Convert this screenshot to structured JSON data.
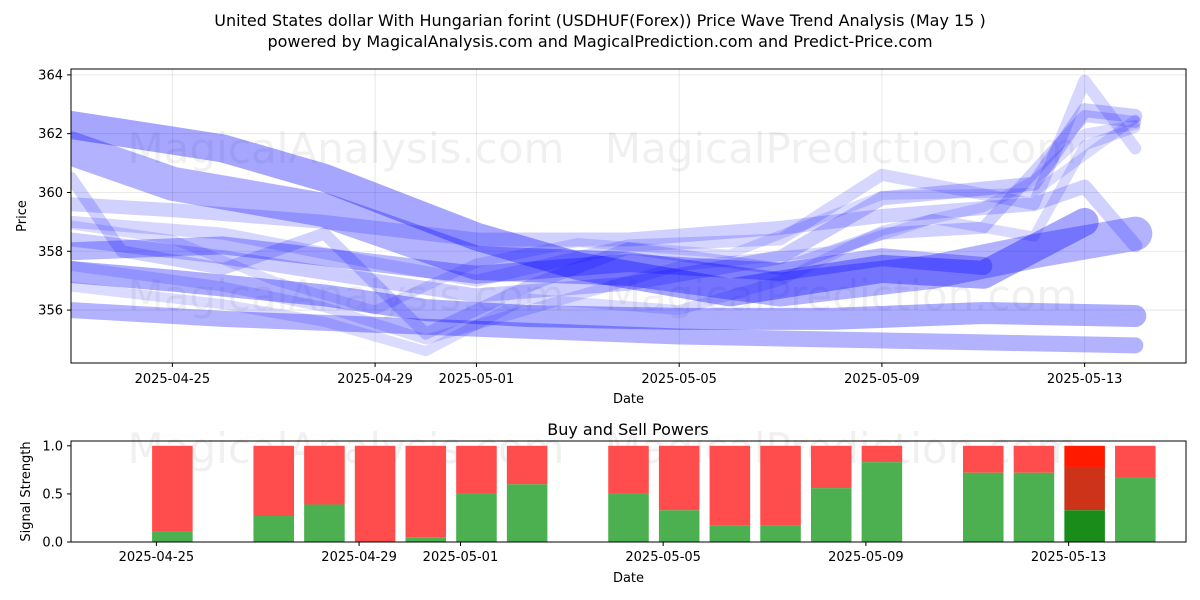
{
  "title_line1": "United States dollar With Hungarian forint (USDHUF(Forex)) Price Wave Trend Analysis (May 15 )",
  "title_line2": "powered by MagicalAnalysis.com and MagicalPrediction.com and Predict-Price.com",
  "watermarks": [
    "MagicalAnalysis.com",
    "MagicalPrediction.com"
  ],
  "chart_data": [
    {
      "type": "line",
      "title": "",
      "xlabel": "Date",
      "ylabel": "Price",
      "xlim": [
        "2025-04-23",
        "2025-05-15"
      ],
      "ylim": [
        354.2,
        364.2
      ],
      "x_ticks": [
        "2025-04-25",
        "2025-04-29",
        "2025-05-01",
        "2025-05-05",
        "2025-05-09",
        "2025-05-13"
      ],
      "y_ticks": [
        356,
        358,
        360,
        362,
        364
      ],
      "grid": true,
      "band_color": "#0000ff",
      "series": [
        {
          "points": [
            [
              "2025-04-23",
              361.5
            ],
            [
              "2025-04-25",
              360.3
            ],
            [
              "2025-04-28",
              359.4
            ],
            [
              "2025-05-01",
              357.6
            ],
            [
              "2025-05-04",
              357.4
            ],
            [
              "2025-05-07",
              356.7
            ],
            [
              "2025-05-10",
              357.3
            ],
            [
              "2025-05-12",
              358.0
            ],
            [
              "2025-05-14",
              358.6
            ]
          ]
        },
        {
          "points": [
            [
              "2025-04-23",
              362.3
            ],
            [
              "2025-04-26",
              361.5
            ],
            [
              "2025-04-28",
              360.5
            ],
            [
              "2025-05-01",
              358.5
            ],
            [
              "2025-05-03",
              357.5
            ],
            [
              "2025-05-06",
              356.6
            ],
            [
              "2025-05-09",
              357.4
            ],
            [
              "2025-05-11",
              357.2
            ],
            [
              "2025-05-13",
              359.0
            ]
          ]
        },
        {
          "points": [
            [
              "2025-04-23",
              357.3
            ],
            [
              "2025-04-25",
              357.0
            ],
            [
              "2025-04-28",
              356.5
            ],
            [
              "2025-04-30",
              356.0
            ],
            [
              "2025-05-02",
              355.8
            ],
            [
              "2025-05-05",
              355.7
            ],
            [
              "2025-05-08",
              355.7
            ],
            [
              "2025-05-11",
              355.9
            ],
            [
              "2025-05-14",
              355.8
            ]
          ]
        },
        {
          "points": [
            [
              "2025-04-23",
              356.0
            ],
            [
              "2025-04-26",
              355.7
            ],
            [
              "2025-04-29",
              355.5
            ],
            [
              "2025-05-02",
              355.3
            ],
            [
              "2025-05-05",
              355.1
            ],
            [
              "2025-05-08",
              355.0
            ],
            [
              "2025-05-11",
              354.9
            ],
            [
              "2025-05-14",
              354.8
            ]
          ]
        },
        {
          "points": [
            [
              "2025-04-23",
              358.0
            ],
            [
              "2025-04-26",
              358.2
            ],
            [
              "2025-04-28",
              357.8
            ],
            [
              "2025-05-01",
              357.2
            ],
            [
              "2025-05-04",
              357.6
            ],
            [
              "2025-05-07",
              357.3
            ],
            [
              "2025-05-09",
              357.8
            ],
            [
              "2025-05-11",
              357.5
            ]
          ]
        },
        {
          "points": [
            [
              "2025-04-23",
              360.5
            ],
            [
              "2025-04-24",
              358.0
            ],
            [
              "2025-04-26",
              357.4
            ],
            [
              "2025-04-28",
              358.6
            ],
            [
              "2025-04-30",
              355.2
            ],
            [
              "2025-05-02",
              356.8
            ],
            [
              "2025-05-04",
              358.1
            ],
            [
              "2025-05-07",
              357.4
            ],
            [
              "2025-05-09",
              358.6
            ],
            [
              "2025-05-11",
              358.8
            ],
            [
              "2025-05-13",
              362.6
            ],
            [
              "2025-05-14",
              362.4
            ]
          ]
        },
        {
          "points": [
            [
              "2025-04-23",
              358.4
            ],
            [
              "2025-04-26",
              357.8
            ],
            [
              "2025-04-29",
              357.0
            ],
            [
              "2025-05-01",
              356.5
            ],
            [
              "2025-05-04",
              356.9
            ],
            [
              "2025-05-07",
              357.8
            ],
            [
              "2025-05-09",
              359.8
            ],
            [
              "2025-05-12",
              360.3
            ],
            [
              "2025-05-13",
              362.8
            ],
            [
              "2025-05-14",
              362.6
            ]
          ]
        },
        {
          "points": [
            [
              "2025-04-23",
              359.0
            ],
            [
              "2025-04-26",
              358.6
            ],
            [
              "2025-04-29",
              357.6
            ],
            [
              "2025-05-01",
              357.0
            ],
            [
              "2025-05-04",
              358.2
            ],
            [
              "2025-05-07",
              358.4
            ],
            [
              "2025-05-09",
              360.6
            ],
            [
              "2025-05-12",
              359.6
            ],
            [
              "2025-05-13",
              363.8
            ],
            [
              "2025-05-14",
              361.5
            ]
          ]
        },
        {
          "points": [
            [
              "2025-04-23",
              356.8
            ],
            [
              "2025-04-26",
              356.2
            ],
            [
              "2025-04-28",
              355.6
            ],
            [
              "2025-04-30",
              354.6
            ],
            [
              "2025-05-02",
              356.4
            ],
            [
              "2025-05-05",
              356.0
            ],
            [
              "2025-05-07",
              357.0
            ],
            [
              "2025-05-09",
              358.7
            ],
            [
              "2025-05-11",
              359.5
            ],
            [
              "2025-05-12",
              360.4
            ],
            [
              "2025-05-13",
              362.0
            ],
            [
              "2025-05-14",
              362.3
            ]
          ]
        },
        {
          "points": [
            [
              "2025-04-23",
              359.6
            ],
            [
              "2025-04-25",
              359.4
            ],
            [
              "2025-04-28",
              359.0
            ],
            [
              "2025-05-01",
              358.4
            ],
            [
              "2025-05-04",
              358.4
            ],
            [
              "2025-05-07",
              358.8
            ],
            [
              "2025-05-09",
              359.2
            ],
            [
              "2025-05-12",
              359.6
            ],
            [
              "2025-05-13",
              360.2
            ],
            [
              "2025-05-14",
              358.2
            ]
          ]
        },
        {
          "points": [
            [
              "2025-04-23",
              357.5
            ],
            [
              "2025-04-26",
              356.8
            ],
            [
              "2025-04-28",
              356.1
            ],
            [
              "2025-04-30",
              355.0
            ],
            [
              "2025-05-02",
              356.0
            ],
            [
              "2025-05-05",
              357.5
            ],
            [
              "2025-05-08",
              358.0
            ],
            [
              "2025-05-10",
              359.1
            ],
            [
              "2025-05-12",
              358.5
            ],
            [
              "2025-05-13",
              361.6
            ],
            [
              "2025-05-14",
              362.2
            ]
          ]
        },
        {
          "points": [
            [
              "2025-04-23",
              358.9
            ],
            [
              "2025-04-25",
              358.4
            ],
            [
              "2025-04-27",
              357.0
            ],
            [
              "2025-04-29",
              356.0
            ],
            [
              "2025-05-01",
              357.6
            ],
            [
              "2025-05-03",
              358.3
            ],
            [
              "2025-05-06",
              357.9
            ],
            [
              "2025-05-09",
              359.9
            ],
            [
              "2025-05-12",
              360.0
            ],
            [
              "2025-05-14",
              362.5
            ]
          ]
        }
      ]
    },
    {
      "type": "bar",
      "title": "Buy and Sell Powers",
      "xlabel": "Date",
      "ylabel": "Signal Strength",
      "ylim": [
        0,
        1.05
      ],
      "y_ticks": [
        "0.0",
        "0.5",
        "1.0"
      ],
      "x_ticks": [
        "2025-04-25",
        "2025-04-29",
        "2025-05-01",
        "2025-05-05",
        "2025-05-09",
        "2025-05-13"
      ],
      "buy_color": "#4caf50",
      "sell_color": "#ff4c4c",
      "highlight_buy_color": "#1a8c1a",
      "highlight_sell_color": "#ff1a00",
      "highlight_mid_color": "#cc3319",
      "bars": [
        {
          "date": "2025-04-25",
          "buy": 0.11
        },
        {
          "date": "2025-04-27",
          "buy": 0.27
        },
        {
          "date": "2025-04-28",
          "buy": 0.39
        },
        {
          "date": "2025-04-29",
          "buy": 0.0
        },
        {
          "date": "2025-04-30",
          "buy": 0.05
        },
        {
          "date": "2025-05-01",
          "buy": 0.5
        },
        {
          "date": "2025-05-02",
          "buy": 0.6
        },
        {
          "date": "2025-05-04",
          "buy": 0.5
        },
        {
          "date": "2025-05-05",
          "buy": 0.33
        },
        {
          "date": "2025-05-06",
          "buy": 0.17
        },
        {
          "date": "2025-05-07",
          "buy": 0.17
        },
        {
          "date": "2025-05-08",
          "buy": 0.56
        },
        {
          "date": "2025-05-09",
          "buy": 0.83
        },
        {
          "date": "2025-05-11",
          "buy": 0.72
        },
        {
          "date": "2025-05-12",
          "buy": 0.72
        },
        {
          "date": "2025-05-13",
          "buy": 0.33,
          "highlight": true,
          "mid_top": 0.78
        },
        {
          "date": "2025-05-14",
          "buy": 0.67
        }
      ]
    }
  ]
}
